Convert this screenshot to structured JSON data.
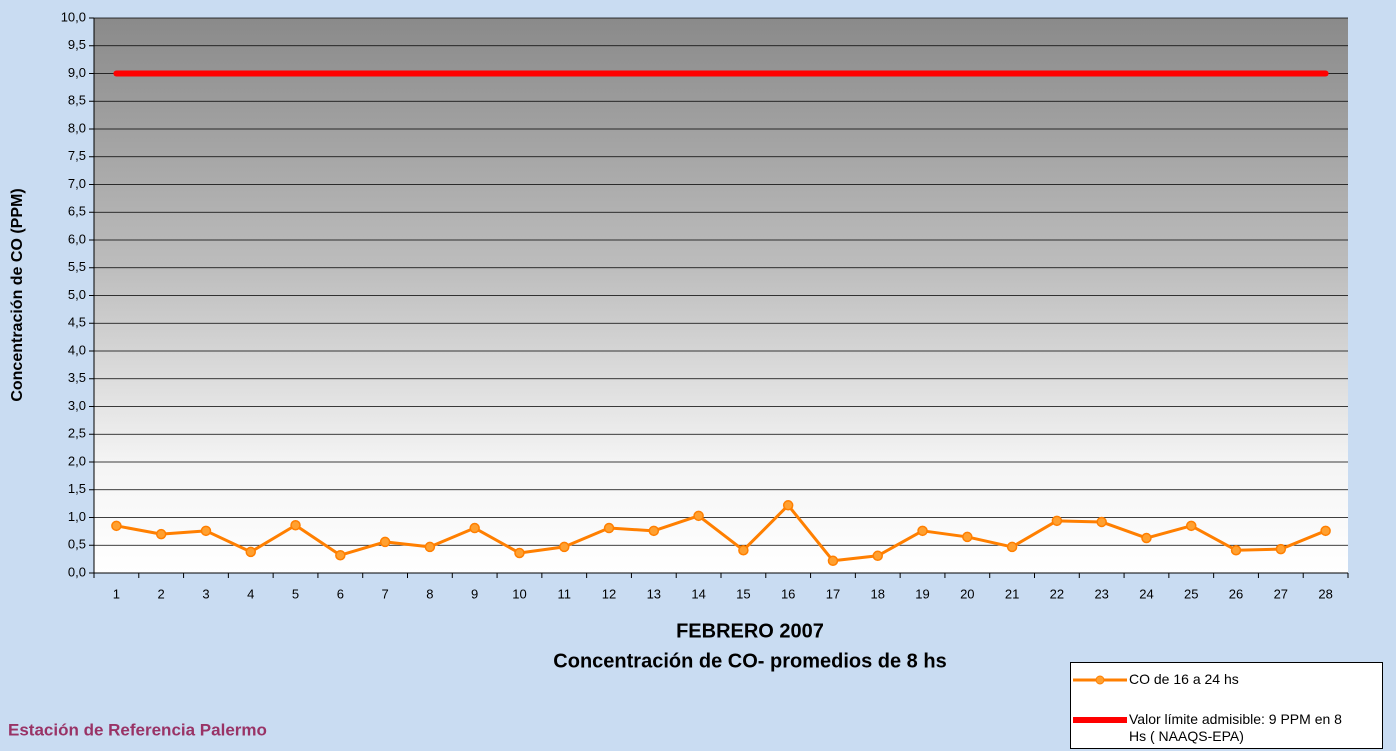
{
  "chart_data": {
    "type": "line",
    "title": "FEBRERO 2007",
    "subtitle": "Concentración de CO- promedios de 8 hs",
    "y_label": "Concentración de CO (PPM)",
    "annotation": "Estación de Referencia Palermo",
    "categories": [
      "1",
      "2",
      "3",
      "4",
      "5",
      "6",
      "7",
      "8",
      "9",
      "10",
      "11",
      "12",
      "13",
      "14",
      "15",
      "16",
      "17",
      "18",
      "19",
      "20",
      "21",
      "22",
      "23",
      "24",
      "25",
      "26",
      "27",
      "28"
    ],
    "series": [
      {
        "name": "CO de 16 a 24 hs",
        "color": "#ff7f00",
        "marker": true,
        "values": [
          0.85,
          0.7,
          0.76,
          0.38,
          0.86,
          0.32,
          0.56,
          0.47,
          0.81,
          0.36,
          0.47,
          0.81,
          0.76,
          1.03,
          0.41,
          1.22,
          0.22,
          0.31,
          0.76,
          0.65,
          0.47,
          0.94,
          0.92,
          0.63,
          0.85,
          0.41,
          0.43,
          0.76
        ]
      },
      {
        "name": "Valor límite admisible: 9 PPM en 8 Hs ( NAAQS-EPA)",
        "color": "#ff0000",
        "marker": false,
        "values": [
          9,
          9,
          9,
          9,
          9,
          9,
          9,
          9,
          9,
          9,
          9,
          9,
          9,
          9,
          9,
          9,
          9,
          9,
          9,
          9,
          9,
          9,
          9,
          9,
          9,
          9,
          9,
          9
        ]
      }
    ],
    "ylim": [
      0,
      10
    ],
    "yticks": [
      {
        "value": 0,
        "label": "0,0"
      },
      {
        "value": 0.5,
        "label": "0,5"
      },
      {
        "value": 1,
        "label": "1,0"
      },
      {
        "value": 1.5,
        "label": "1,5"
      },
      {
        "value": 2,
        "label": "2,0"
      },
      {
        "value": 2.5,
        "label": "2,5"
      },
      {
        "value": 3,
        "label": "3,0"
      },
      {
        "value": 3.5,
        "label": "3,5"
      },
      {
        "value": 4,
        "label": "4,0"
      },
      {
        "value": 4.5,
        "label": "4,5"
      },
      {
        "value": 5,
        "label": "5,0"
      },
      {
        "value": 5.5,
        "label": "5,5"
      },
      {
        "value": 6,
        "label": "6,0"
      },
      {
        "value": 6.5,
        "label": "6,5"
      },
      {
        "value": 7,
        "label": "7,0"
      },
      {
        "value": 7.5,
        "label": "7,5"
      },
      {
        "value": 8,
        "label": "8,0"
      },
      {
        "value": 8.5,
        "label": "8,5"
      },
      {
        "value": 9,
        "label": "9,0"
      },
      {
        "value": 9.5,
        "label": "9,5"
      },
      {
        "value": 10,
        "label": "10,0"
      }
    ],
    "grid": true
  }
}
